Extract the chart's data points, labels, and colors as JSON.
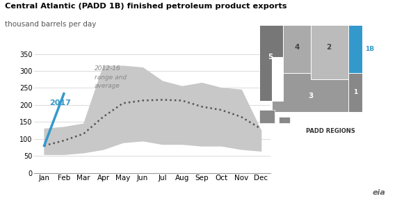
{
  "title": "Central Atlantic (PADD 1B) finished petroleum product exports",
  "subtitle": "thousand barrels per day",
  "months": [
    "Jan",
    "Feb",
    "Mar",
    "Apr",
    "May",
    "Jun",
    "Jul",
    "Aug",
    "Sep",
    "Oct",
    "Nov",
    "Dec"
  ],
  "avg_2012_16": [
    80,
    95,
    115,
    165,
    205,
    213,
    215,
    213,
    195,
    185,
    165,
    130
  ],
  "range_low": [
    55,
    55,
    60,
    70,
    90,
    95,
    85,
    85,
    80,
    80,
    70,
    65
  ],
  "range_high": [
    130,
    135,
    145,
    315,
    315,
    310,
    270,
    255,
    265,
    250,
    245,
    125
  ],
  "data_2017": [
    80,
    233
  ],
  "data_2017_months": [
    0,
    1
  ],
  "ylim": [
    0,
    355
  ],
  "yticks": [
    0,
    50,
    100,
    150,
    200,
    250,
    300,
    350
  ],
  "color_2017": "#3399cc",
  "color_range": "#c8c8c8",
  "color_avg": "#555555",
  "color_title": "#000000",
  "color_subtitle": "#555555",
  "background_color": "#ffffff",
  "map_colors": {
    "padd1_lower": "#888888",
    "padd1b": "#3399cc",
    "padd2": "#bbbbbb",
    "padd3": "#999999",
    "padd4": "#aaaaaa",
    "padd5": "#777777",
    "alaska": "#888888"
  }
}
